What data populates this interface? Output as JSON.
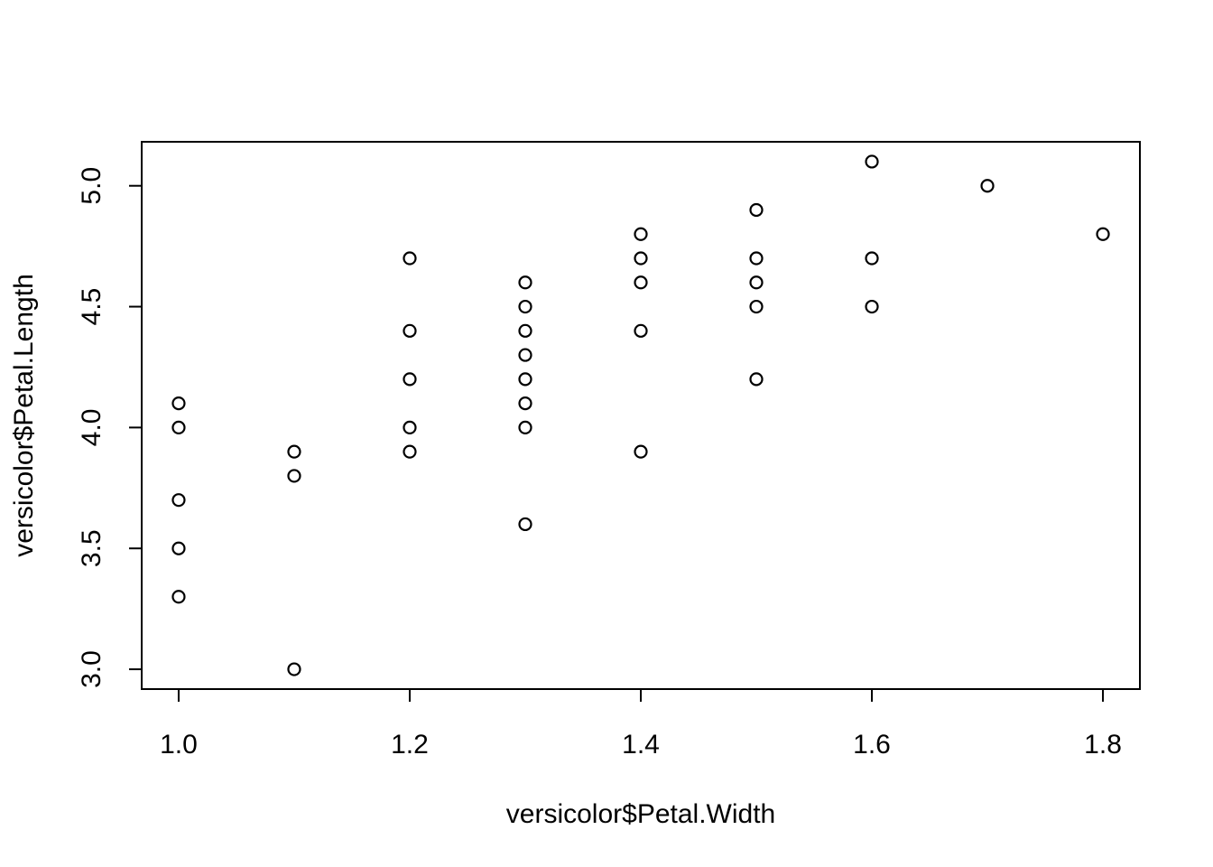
{
  "chart_data": {
    "type": "scatter",
    "title": "",
    "xlabel": "versicolor$Petal.Width",
    "ylabel": "versicolor$Petal.Length",
    "xlim": [
      0.968,
      1.832
    ],
    "ylim": [
      2.918,
      5.182
    ],
    "xticks": [
      1.0,
      1.2,
      1.4,
      1.6,
      1.8
    ],
    "xtick_labels": [
      "1.0",
      "1.2",
      "1.4",
      "1.6",
      "1.8"
    ],
    "yticks": [
      3.0,
      3.5,
      4.0,
      4.5,
      5.0
    ],
    "ytick_labels": [
      "3.0",
      "3.5",
      "4.0",
      "4.5",
      "5.0"
    ],
    "grid": false,
    "legend": "none",
    "marker": "open-circle",
    "x": [
      1.0,
      1.0,
      1.0,
      1.0,
      1.0,
      1.1,
      1.1,
      1.1,
      1.2,
      1.2,
      1.2,
      1.2,
      1.2,
      1.3,
      1.3,
      1.3,
      1.3,
      1.3,
      1.3,
      1.3,
      1.3,
      1.4,
      1.4,
      1.4,
      1.4,
      1.4,
      1.5,
      1.5,
      1.5,
      1.5,
      1.5,
      1.6,
      1.6,
      1.6,
      1.7,
      1.8
    ],
    "y": [
      4.1,
      4.0,
      3.7,
      3.5,
      3.3,
      3.9,
      3.8,
      3.0,
      4.7,
      4.4,
      4.2,
      4.0,
      3.9,
      4.6,
      4.5,
      4.4,
      4.3,
      4.2,
      4.1,
      4.0,
      3.6,
      4.8,
      4.7,
      4.6,
      4.4,
      3.9,
      4.9,
      4.7,
      4.6,
      4.5,
      4.2,
      5.1,
      4.7,
      4.5,
      5.0,
      4.8
    ]
  }
}
